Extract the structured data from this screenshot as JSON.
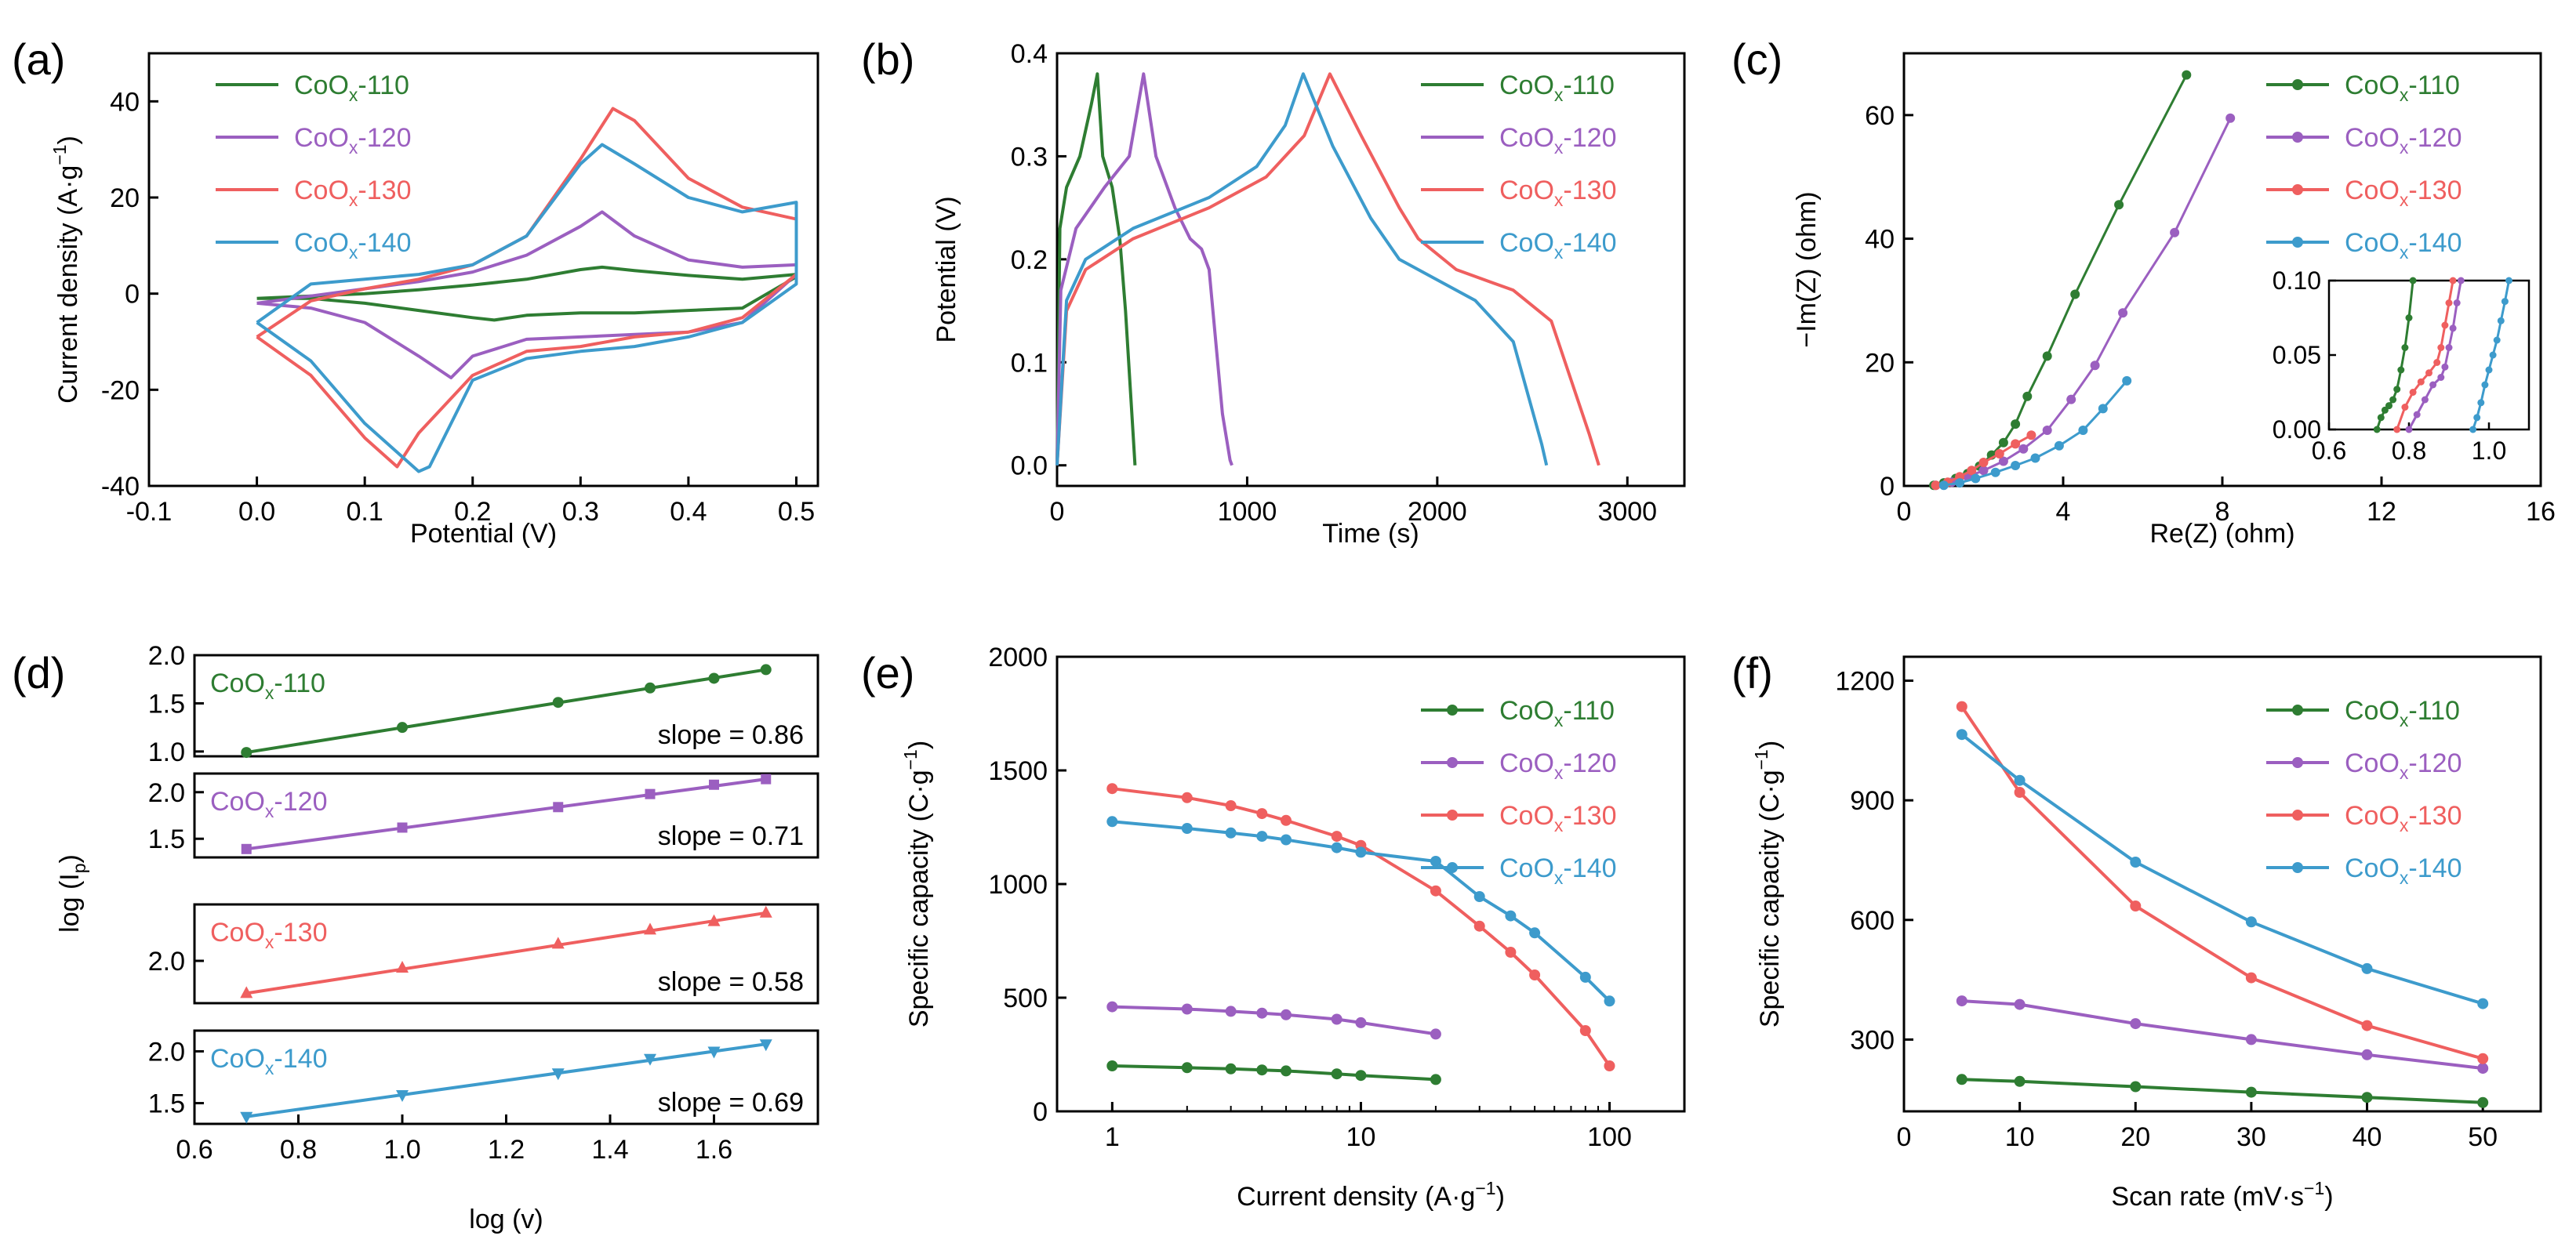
{
  "colors": {
    "s110": "#2e7d32",
    "s120": "#9b5fc0",
    "s130": "#ef5f5f",
    "s140": "#3d9bcc",
    "axis": "#000000"
  },
  "series_names": [
    "CoOx-110",
    "CoOx-120",
    "CoOx-130",
    "CoOx-140"
  ],
  "chart_data": [
    {
      "panel": "(a)",
      "type": "line",
      "title": "",
      "xlabel": "Potential (V)",
      "ylabel": "Current density (A·g⁻¹)",
      "xlim": [
        -0.1,
        0.5
      ],
      "ylim": [
        -40,
        50
      ],
      "xticks": [
        "-0.1",
        "0.0",
        "0.1",
        "0.2",
        "0.3",
        "0.4",
        "0.5"
      ],
      "xtick_values": [
        -0.1,
        0.0,
        0.1,
        0.2,
        0.3,
        0.4,
        0.5
      ],
      "yticks": [
        "-40",
        "-20",
        "0",
        "20",
        "40"
      ],
      "ytick_values": [
        -40,
        -20,
        0,
        20,
        40
      ],
      "legend": "top-left",
      "series": [
        {
          "name": "CoOx-110",
          "x": [
            0.0,
            0.05,
            0.1,
            0.15,
            0.2,
            0.25,
            0.3,
            0.32,
            0.35,
            0.4,
            0.45,
            0.5,
            0.5,
            0.45,
            0.4,
            0.35,
            0.3,
            0.25,
            0.22,
            0.2,
            0.15,
            0.1,
            0.05,
            0.0,
            0.0
          ],
          "y": [
            -1,
            -0.5,
            0,
            0.8,
            1.8,
            3,
            5,
            5.5,
            4.8,
            3.8,
            3,
            4,
            3.5,
            -3,
            -3.5,
            -4,
            -4,
            -4.5,
            -5.5,
            -5,
            -3.5,
            -2,
            -1,
            -1,
            -1
          ]
        },
        {
          "name": "CoOx-120",
          "x": [
            0.0,
            0.05,
            0.1,
            0.15,
            0.2,
            0.25,
            0.3,
            0.32,
            0.35,
            0.4,
            0.45,
            0.5,
            0.5,
            0.45,
            0.4,
            0.35,
            0.3,
            0.25,
            0.2,
            0.18,
            0.15,
            0.1,
            0.05,
            0.0,
            0.0
          ],
          "y": [
            -2,
            -0.5,
            1,
            2.5,
            4.5,
            8,
            14,
            17,
            12,
            7,
            5.5,
            6,
            4,
            -6,
            -8,
            -8.5,
            -9,
            -9.5,
            -13,
            -17.5,
            -13,
            -6,
            -3,
            -2,
            -2
          ]
        },
        {
          "name": "CoOx-130",
          "x": [
            0.0,
            0.05,
            0.1,
            0.15,
            0.2,
            0.25,
            0.3,
            0.33,
            0.35,
            0.4,
            0.45,
            0.5,
            0.5,
            0.45,
            0.4,
            0.35,
            0.3,
            0.25,
            0.2,
            0.15,
            0.13,
            0.1,
            0.05,
            0.0,
            0.0
          ],
          "y": [
            -9,
            -1.5,
            1,
            3,
            6,
            12,
            28,
            38.5,
            36,
            24,
            18,
            15.5,
            4,
            -5,
            -8,
            -9,
            -11,
            -12,
            -17,
            -29,
            -36,
            -30,
            -17,
            -9,
            -9
          ]
        },
        {
          "name": "CoOx-140",
          "x": [
            0.0,
            0.05,
            0.1,
            0.15,
            0.2,
            0.25,
            0.3,
            0.32,
            0.35,
            0.4,
            0.45,
            0.5,
            0.5,
            0.45,
            0.4,
            0.35,
            0.3,
            0.25,
            0.2,
            0.16,
            0.15,
            0.1,
            0.05,
            0.0,
            0.0
          ],
          "y": [
            -6,
            2,
            3,
            4,
            6,
            12,
            27,
            31,
            27,
            20,
            17,
            19,
            2,
            -6,
            -9,
            -11,
            -12,
            -13.5,
            -18,
            -36,
            -37,
            -27,
            -14,
            -6,
            -6
          ]
        }
      ]
    },
    {
      "panel": "(b)",
      "type": "line",
      "title": "",
      "xlabel": "Time (s)",
      "ylabel": "Potential (V)",
      "xlim": [
        0,
        3300
      ],
      "ylim": [
        -0.02,
        0.4
      ],
      "xticks": [
        "0",
        "1000",
        "2000",
        "3000"
      ],
      "xtick_values": [
        0,
        1000,
        2000,
        3000
      ],
      "yticks": [
        "0.0",
        "0.1",
        "0.2",
        "0.3",
        "0.4"
      ],
      "ytick_values": [
        0.0,
        0.1,
        0.2,
        0.3,
        0.4
      ],
      "legend": "top-right",
      "series": [
        {
          "name": "CoOx-110",
          "x": [
            0,
            15,
            50,
            120,
            180,
            212,
            240,
            290,
            330,
            360,
            400,
            410
          ],
          "y": [
            0,
            0.23,
            0.27,
            0.3,
            0.35,
            0.38,
            0.3,
            0.27,
            0.22,
            0.15,
            0.03,
            0
          ]
        },
        {
          "name": "CoOx-120",
          "x": [
            0,
            20,
            100,
            250,
            380,
            455,
            520,
            620,
            700,
            760,
            800,
            870,
            910,
            920
          ],
          "y": [
            0,
            0.17,
            0.23,
            0.27,
            0.3,
            0.38,
            0.3,
            0.25,
            0.22,
            0.21,
            0.19,
            0.05,
            0.005,
            0
          ]
        },
        {
          "name": "CoOx-130",
          "x": [
            0,
            50,
            150,
            400,
            800,
            1100,
            1300,
            1435,
            1600,
            1800,
            1900,
            2100,
            2400,
            2600,
            2800,
            2850
          ],
          "y": [
            0,
            0.15,
            0.19,
            0.22,
            0.25,
            0.28,
            0.32,
            0.38,
            0.32,
            0.25,
            0.22,
            0.19,
            0.17,
            0.14,
            0.03,
            0
          ]
        },
        {
          "name": "CoOx-140",
          "x": [
            0,
            50,
            150,
            400,
            800,
            1050,
            1200,
            1295,
            1450,
            1650,
            1800,
            2000,
            2200,
            2400,
            2550,
            2575
          ],
          "y": [
            0,
            0.16,
            0.2,
            0.23,
            0.26,
            0.29,
            0.33,
            0.38,
            0.31,
            0.24,
            0.2,
            0.18,
            0.16,
            0.12,
            0.02,
            0
          ]
        }
      ]
    },
    {
      "panel": "(c)",
      "type": "scatter",
      "title": "",
      "xlabel": "Re(Z) (ohm)",
      "ylabel": "−Im(Z) (ohm)",
      "xlim": [
        0,
        16
      ],
      "ylim": [
        0,
        70
      ],
      "xticks": [
        "0",
        "4",
        "8",
        "12",
        "16"
      ],
      "xtick_values": [
        0,
        4,
        8,
        12,
        16
      ],
      "yticks": [
        "0",
        "20",
        "40",
        "60"
      ],
      "ytick_values": [
        0,
        20,
        40,
        60
      ],
      "legend": "top-right",
      "series": [
        {
          "name": "CoOx-110",
          "x": [
            0.75,
            1.0,
            1.3,
            1.6,
            1.9,
            2.2,
            2.5,
            2.8,
            3.1,
            3.6,
            4.3,
            5.4,
            7.1
          ],
          "y": [
            0.1,
            0.5,
            1.2,
            2.0,
            3.2,
            5.0,
            7.0,
            10.0,
            14.5,
            21.0,
            31.0,
            45.5,
            66.5
          ]
        },
        {
          "name": "CoOx-120",
          "x": [
            0.8,
            1.2,
            1.6,
            2.0,
            2.5,
            3.0,
            3.6,
            4.2,
            4.8,
            5.5,
            6.8,
            8.2
          ],
          "y": [
            0.1,
            0.6,
            1.5,
            2.5,
            4.0,
            6.0,
            9.0,
            14.0,
            19.5,
            28.0,
            41.0,
            59.5
          ]
        },
        {
          "name": "CoOx-130",
          "x": [
            0.8,
            1.1,
            1.4,
            1.7,
            2.0,
            2.4,
            2.8,
            3.2
          ],
          "y": [
            0.1,
            0.6,
            1.5,
            2.5,
            3.8,
            5.2,
            6.8,
            8.2
          ]
        },
        {
          "name": "CoOx-140",
          "x": [
            1.0,
            1.4,
            1.8,
            2.3,
            2.8,
            3.3,
            3.9,
            4.5,
            5.0,
            5.6
          ],
          "y": [
            0.1,
            0.5,
            1.2,
            2.2,
            3.3,
            4.5,
            6.5,
            9.0,
            12.5,
            17.0
          ]
        }
      ],
      "inset": {
        "xlim": [
          0.6,
          1.1
        ],
        "ylim": [
          0,
          0.1
        ],
        "xticks": [
          "0.6",
          "0.8",
          "1.0"
        ],
        "xtick_values": [
          0.6,
          0.8,
          1.0
        ],
        "yticks": [
          "0.00",
          "0.05",
          "0.10"
        ],
        "ytick_values": [
          0,
          0.05,
          0.1
        ],
        "series": [
          {
            "name": "CoOx-110",
            "x": [
              0.72,
              0.73,
              0.74,
              0.75,
              0.76,
              0.77,
              0.78,
              0.79,
              0.8,
              0.81
            ],
            "y": [
              0.0,
              0.008,
              0.013,
              0.016,
              0.02,
              0.027,
              0.04,
              0.055,
              0.075,
              0.1
            ]
          },
          {
            "name": "CoOx-120",
            "x": [
              0.8,
              0.82,
              0.84,
              0.86,
              0.88,
              0.89,
              0.9,
              0.91,
              0.92,
              0.93
            ],
            "y": [
              0.0,
              0.01,
              0.02,
              0.03,
              0.035,
              0.042,
              0.055,
              0.068,
              0.085,
              0.1
            ]
          },
          {
            "name": "CoOx-130",
            "x": [
              0.77,
              0.79,
              0.81,
              0.83,
              0.85,
              0.87,
              0.88,
              0.89,
              0.9,
              0.91
            ],
            "y": [
              0.0,
              0.015,
              0.025,
              0.032,
              0.038,
              0.045,
              0.055,
              0.07,
              0.085,
              0.1
            ]
          },
          {
            "name": "CoOx-140",
            "x": [
              0.96,
              0.97,
              0.98,
              0.99,
              1.0,
              1.01,
              1.02,
              1.03,
              1.04,
              1.05
            ],
            "y": [
              0.0,
              0.008,
              0.018,
              0.03,
              0.04,
              0.05,
              0.06,
              0.073,
              0.086,
              0.1
            ]
          }
        ]
      }
    },
    {
      "panel": "(d)",
      "type": "line",
      "title": "",
      "xlabel": "log (v)",
      "ylabel": "log (Ip)",
      "xlim": [
        0.6,
        1.8
      ],
      "xticks": [
        "0.6",
        "0.8",
        "1.0",
        "1.2",
        "1.4",
        "1.6"
      ],
      "xtick_values": [
        0.6,
        0.8,
        1.0,
        1.2,
        1.4,
        1.6
      ],
      "x": [
        0.7,
        1.0,
        1.3,
        1.477,
        1.6,
        1.7
      ],
      "subplots": [
        {
          "name": "CoOx-110",
          "ylim": [
            0.95,
            2.0
          ],
          "yticks": [
            "1.0",
            "1.5",
            "2.0"
          ],
          "ytick_values": [
            1.0,
            1.5,
            2.0
          ],
          "values": [
            0.99,
            1.25,
            1.51,
            1.66,
            1.76,
            1.85
          ],
          "slope": "slope = 0.86",
          "marker": "circle"
        },
        {
          "name": "CoOx-120",
          "ylim": [
            1.3,
            2.2
          ],
          "yticks": [
            "1.5",
            "2.0"
          ],
          "ytick_values": [
            1.5,
            2.0
          ],
          "values": [
            1.39,
            1.62,
            1.84,
            1.98,
            2.08,
            2.14
          ],
          "slope": "slope = 0.71",
          "marker": "square"
        },
        {
          "name": "CoOx-130",
          "ylim": [
            1.7,
            2.4
          ],
          "yticks": [
            "2.0"
          ],
          "ytick_values": [
            2.0
          ],
          "values": [
            1.77,
            1.95,
            2.12,
            2.22,
            2.28,
            2.34
          ],
          "slope": "slope = 0.58",
          "marker": "triangle-up"
        },
        {
          "name": "CoOx-140",
          "ylim": [
            1.3,
            2.2
          ],
          "yticks": [
            "1.5",
            "2.0"
          ],
          "ytick_values": [
            1.5,
            2.0
          ],
          "values": [
            1.37,
            1.58,
            1.79,
            1.93,
            2.0,
            2.07
          ],
          "slope": "slope = 0.69",
          "marker": "triangle-down"
        }
      ]
    },
    {
      "panel": "(e)",
      "type": "line",
      "title": "",
      "xlabel": "Current density (A·g⁻¹)",
      "ylabel": "Specific capacity (C·g⁻¹)",
      "xscale": "log",
      "xlim": [
        0.6,
        200
      ],
      "ylim": [
        0,
        2000
      ],
      "xticks": [
        "1",
        "10",
        "100"
      ],
      "xtick_values": [
        1,
        10,
        100
      ],
      "yticks": [
        "0",
        "500",
        "1000",
        "1500",
        "2000"
      ],
      "ytick_values": [
        0,
        500,
        1000,
        1500,
        2000
      ],
      "legend": "top-right",
      "series": [
        {
          "name": "CoOx-110",
          "x": [
            1,
            2,
            3,
            4,
            5,
            8,
            10,
            20
          ],
          "y": [
            200,
            192,
            187,
            182,
            178,
            165,
            158,
            140
          ]
        },
        {
          "name": "CoOx-120",
          "x": [
            1,
            2,
            3,
            4,
            5,
            8,
            10,
            20
          ],
          "y": [
            460,
            450,
            440,
            432,
            425,
            405,
            390,
            340
          ]
        },
        {
          "name": "CoOx-130",
          "x": [
            1,
            2,
            3,
            4,
            5,
            8,
            10,
            20,
            30,
            40,
            50,
            80,
            100
          ],
          "y": [
            1420,
            1380,
            1345,
            1310,
            1280,
            1210,
            1170,
            970,
            815,
            700,
            600,
            355,
            200
          ]
        },
        {
          "name": "CoOx-140",
          "x": [
            1,
            2,
            3,
            4,
            5,
            8,
            10,
            20,
            30,
            40,
            50,
            80,
            100
          ],
          "y": [
            1275,
            1245,
            1225,
            1210,
            1195,
            1160,
            1140,
            1100,
            945,
            860,
            785,
            590,
            485
          ]
        }
      ]
    },
    {
      "panel": "(f)",
      "type": "line",
      "title": "",
      "xlabel": "Scan rate (mV·s⁻¹)",
      "ylabel": "Specific capacity (C·g⁻¹)",
      "xlim": [
        0,
        55
      ],
      "ylim": [
        120,
        1260
      ],
      "xticks": [
        "0",
        "10",
        "20",
        "30",
        "40",
        "50"
      ],
      "xtick_values": [
        0,
        10,
        20,
        30,
        40,
        50
      ],
      "yticks": [
        "300",
        "600",
        "900",
        "1200"
      ],
      "ytick_values": [
        300,
        600,
        900,
        1200
      ],
      "legend": "top-right",
      "series": [
        {
          "name": "CoOx-110",
          "x": [
            5,
            10,
            20,
            30,
            40,
            50
          ],
          "y": [
            200,
            195,
            182,
            168,
            155,
            142
          ]
        },
        {
          "name": "CoOx-120",
          "x": [
            5,
            10,
            20,
            30,
            40,
            50
          ],
          "y": [
            397,
            388,
            340,
            300,
            262,
            228
          ]
        },
        {
          "name": "CoOx-130",
          "x": [
            5,
            10,
            20,
            30,
            40,
            50
          ],
          "y": [
            1135,
            920,
            635,
            455,
            335,
            252
          ]
        },
        {
          "name": "CoOx-140",
          "x": [
            5,
            10,
            20,
            30,
            40,
            50
          ],
          "y": [
            1065,
            950,
            745,
            595,
            478,
            390
          ]
        }
      ]
    }
  ]
}
